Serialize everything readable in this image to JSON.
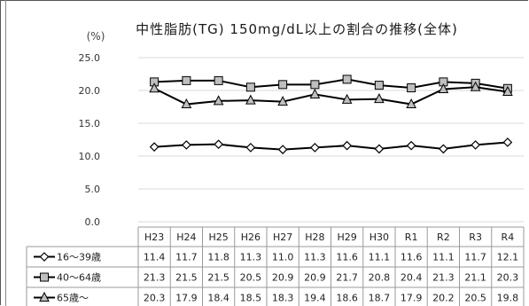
{
  "chart_data": {
    "type": "line",
    "title": "中性脂肪(TG) 150mg/dL以上の割合の推移(全体)",
    "ylabel": "(%)",
    "ylim": [
      0,
      25
    ],
    "yticks": [
      "0.0",
      "5.0",
      "10.0",
      "15.0",
      "20.0",
      "25.0"
    ],
    "grid": true,
    "legend_placement": "data-table-left",
    "categories": [
      "H23",
      "H24",
      "H25",
      "H26",
      "H27",
      "H28",
      "H29",
      "H30",
      "R1",
      "R2",
      "R3",
      "R4"
    ],
    "series": [
      {
        "name": "16～39歳",
        "marker": "diamond",
        "values": [
          11.4,
          11.7,
          11.8,
          11.3,
          11.0,
          11.3,
          11.6,
          11.1,
          11.6,
          11.1,
          11.7,
          12.1
        ]
      },
      {
        "name": "40～64歳",
        "marker": "square",
        "values": [
          21.3,
          21.5,
          21.5,
          20.5,
          20.9,
          20.9,
          21.7,
          20.8,
          20.4,
          21.3,
          21.1,
          20.3
        ]
      },
      {
        "name": "65歳～",
        "marker": "triangle",
        "values": [
          20.3,
          17.9,
          18.4,
          18.5,
          18.3,
          19.4,
          18.6,
          18.7,
          17.9,
          20.2,
          20.5,
          19.8
        ]
      }
    ]
  },
  "colors": {
    "line": "#000000",
    "marker_fill": "#bfbfbf",
    "grid": "#d9d9d9",
    "table_border": "#9a9a9a"
  }
}
